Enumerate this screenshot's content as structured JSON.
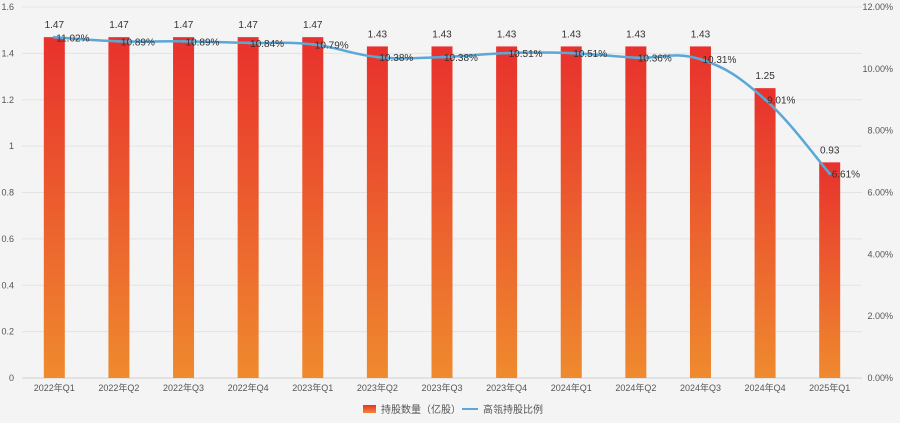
{
  "chart_data": {
    "type": "bar",
    "categories": [
      "2022年Q1",
      "2022年Q2",
      "2022年Q3",
      "2022年Q4",
      "2023年Q1",
      "2023年Q2",
      "2023年Q3",
      "2023年Q4",
      "2024年Q1",
      "2024年Q2",
      "2024年Q3",
      "2024年Q4",
      "2025年Q1"
    ],
    "series": [
      {
        "name": "持股数量（亿股）",
        "type": "bar",
        "axis": "left",
        "values": [
          1.47,
          1.47,
          1.47,
          1.47,
          1.47,
          1.43,
          1.43,
          1.43,
          1.43,
          1.43,
          1.43,
          1.25,
          0.93
        ],
        "labels": [
          "1.47",
          "1.47",
          "1.47",
          "1.47",
          "1.47",
          "1.43",
          "1.43",
          "1.43",
          "1.43",
          "1.43",
          "1.43",
          "1.25",
          "0.93"
        ],
        "color_top": "#e8312d",
        "color_bottom": "#ef8a2e"
      },
      {
        "name": "高瓴持股比例",
        "type": "line",
        "axis": "right",
        "values": [
          11.02,
          10.89,
          10.89,
          10.84,
          10.79,
          10.38,
          10.38,
          10.51,
          10.51,
          10.36,
          10.31,
          9.01,
          6.61
        ],
        "labels": [
          "11.02%",
          "10.89%",
          "10.89%",
          "10.84%",
          "10.79%",
          "10.38%",
          "10.38%",
          "10.51%",
          "10.51%",
          "10.36%",
          "10.31%",
          "9.01%",
          "6.61%"
        ],
        "color": "#5aa8d6"
      }
    ],
    "y_left": {
      "min": 0,
      "max": 1.6,
      "ticks": [
        0,
        0.2,
        0.4,
        0.6,
        0.8,
        1,
        1.2,
        1.4,
        1.6
      ],
      "tick_labels": [
        "0",
        "0.2",
        "0.4",
        "0.6",
        "0.8",
        "1",
        "1.2",
        "1.4",
        "1.6"
      ]
    },
    "y_right": {
      "min": 0,
      "max": 12,
      "ticks": [
        0,
        2,
        4,
        6,
        8,
        10,
        12
      ],
      "tick_labels": [
        "0.00%",
        "2.00%",
        "4.00%",
        "6.00%",
        "8.00%",
        "10.00%",
        "12.00%"
      ]
    },
    "grid": true,
    "legend_position": "bottom-center",
    "title": "",
    "xlabel": "",
    "ylabel": ""
  }
}
